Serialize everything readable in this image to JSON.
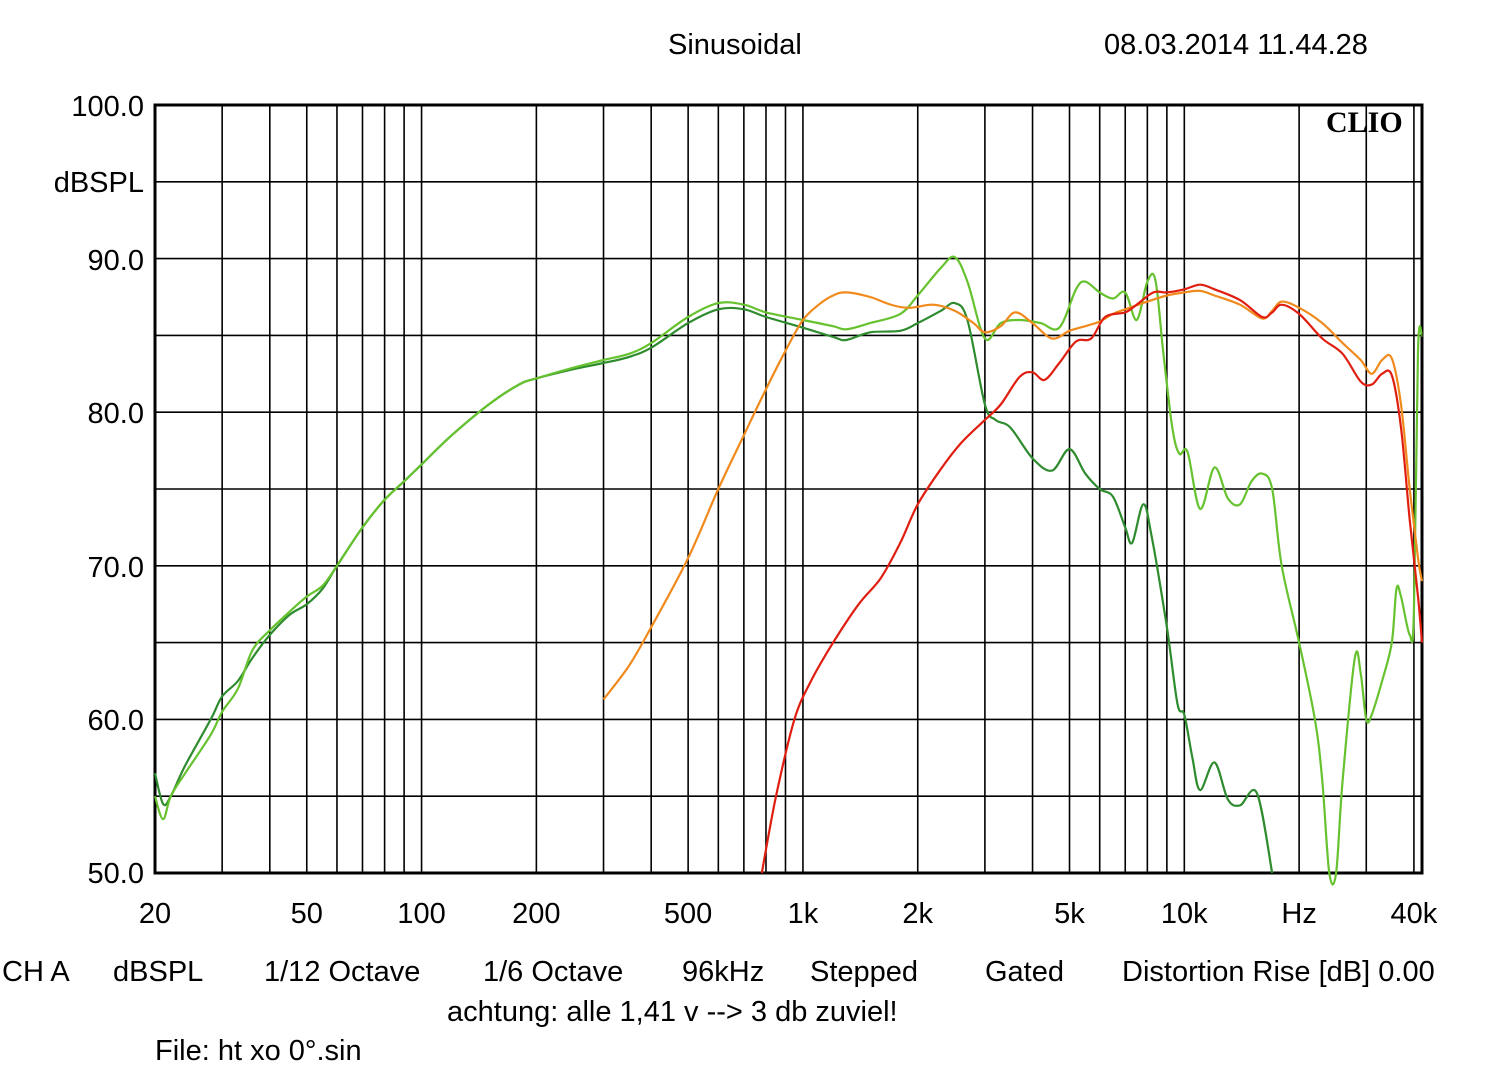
{
  "header": {
    "mode": "Sinusoidal",
    "datetime": "08.03.2014 11.44.28",
    "brand": "CLIO"
  },
  "footer": {
    "channel": "CH A",
    "unit": "dBSPL",
    "smoothing": "1/12 Octave",
    "resolution": "1/6 Octave",
    "sample_rate": "96kHz",
    "sweep": "Stepped",
    "window": "Gated",
    "distortion": "Distortion Rise [dB] 0.00",
    "note": "achtung: alle 1,41 v --> 3 db zuviel!",
    "file": "File: ht xo 0°.sin"
  },
  "colors": {
    "grid": "#000000",
    "dark_green": "#2e8b2e",
    "light_green": "#66c22e",
    "orange": "#f08a1c",
    "red": "#e01e10"
  },
  "chart_data": {
    "type": "line",
    "x_scale": "log",
    "xlim": [
      20,
      42000
    ],
    "ylim": [
      50,
      100
    ],
    "ylabel": "dBSPL",
    "xlabel": "Hz",
    "grid": true,
    "y_ticks": [
      "100.0",
      "90.0",
      "80.0",
      "70.0",
      "60.0",
      "50.0"
    ],
    "x_ticks": [
      {
        "v": 20,
        "label": "20"
      },
      {
        "v": 50,
        "label": "50"
      },
      {
        "v": 100,
        "label": "100"
      },
      {
        "v": 200,
        "label": "200"
      },
      {
        "v": 500,
        "label": "500"
      },
      {
        "v": 1000,
        "label": "1k"
      },
      {
        "v": 2000,
        "label": "2k"
      },
      {
        "v": 5000,
        "label": "5k"
      },
      {
        "v": 10000,
        "label": "10k"
      },
      {
        "v": 20000,
        "label": "Hz"
      },
      {
        "v": 40000,
        "label": "40k"
      }
    ],
    "series": [
      {
        "color": "#2e8b2e",
        "points": [
          [
            20,
            56.5
          ],
          [
            21,
            54.5
          ],
          [
            22,
            55
          ],
          [
            24,
            57
          ],
          [
            28,
            60
          ],
          [
            30,
            61.5
          ],
          [
            33,
            62.5
          ],
          [
            36,
            64
          ],
          [
            40,
            65.5
          ],
          [
            45,
            66.8
          ],
          [
            50,
            67.5
          ],
          [
            55,
            68.5
          ],
          [
            60,
            70
          ],
          [
            70,
            72.5
          ],
          [
            80,
            74.3
          ],
          [
            90,
            75.5
          ],
          [
            100,
            76.6
          ],
          [
            120,
            78.5
          ],
          [
            150,
            80.5
          ],
          [
            180,
            81.8
          ],
          [
            200,
            82.2
          ],
          [
            250,
            82.8
          ],
          [
            300,
            83.2
          ],
          [
            350,
            83.6
          ],
          [
            400,
            84.2
          ],
          [
            500,
            85.8
          ],
          [
            600,
            86.7
          ],
          [
            700,
            86.7
          ],
          [
            800,
            86.2
          ],
          [
            1000,
            85.5
          ],
          [
            1200,
            84.9
          ],
          [
            1300,
            84.7
          ],
          [
            1500,
            85.2
          ],
          [
            1800,
            85.3
          ],
          [
            2000,
            85.8
          ],
          [
            2300,
            86.6
          ],
          [
            2500,
            87.1
          ],
          [
            2700,
            86
          ],
          [
            3000,
            80.5
          ],
          [
            3200,
            79.5
          ],
          [
            3500,
            79
          ],
          [
            4000,
            77
          ],
          [
            4500,
            76.2
          ],
          [
            5000,
            77.6
          ],
          [
            5500,
            76
          ],
          [
            6000,
            75
          ],
          [
            6500,
            74.5
          ],
          [
            7000,
            72.5
          ],
          [
            7300,
            71.5
          ],
          [
            7800,
            74
          ],
          [
            8200,
            72
          ],
          [
            9000,
            66
          ],
          [
            9600,
            61
          ],
          [
            10000,
            60.3
          ],
          [
            10500,
            57.5
          ],
          [
            11000,
            55.4
          ],
          [
            12000,
            57.2
          ],
          [
            13000,
            54.8
          ],
          [
            14000,
            54.4
          ],
          [
            15500,
            55.2
          ],
          [
            17000,
            50
          ]
        ]
      },
      {
        "color": "#66c22e",
        "points": [
          [
            20,
            55
          ],
          [
            21,
            53.5
          ],
          [
            22,
            55
          ],
          [
            24,
            56.5
          ],
          [
            28,
            59
          ],
          [
            30,
            60.5
          ],
          [
            33,
            62
          ],
          [
            36,
            64.5
          ],
          [
            40,
            65.8
          ],
          [
            45,
            67
          ],
          [
            50,
            68
          ],
          [
            55,
            68.7
          ],
          [
            60,
            70
          ],
          [
            70,
            72.5
          ],
          [
            80,
            74.3
          ],
          [
            90,
            75.5
          ],
          [
            100,
            76.6
          ],
          [
            120,
            78.5
          ],
          [
            150,
            80.5
          ],
          [
            180,
            81.8
          ],
          [
            200,
            82.2
          ],
          [
            250,
            82.9
          ],
          [
            300,
            83.4
          ],
          [
            350,
            83.8
          ],
          [
            400,
            84.5
          ],
          [
            500,
            86.2
          ],
          [
            600,
            87.1
          ],
          [
            700,
            87
          ],
          [
            800,
            86.5
          ],
          [
            1000,
            86
          ],
          [
            1200,
            85.6
          ],
          [
            1300,
            85.4
          ],
          [
            1500,
            85.8
          ],
          [
            1800,
            86.4
          ],
          [
            2000,
            87.6
          ],
          [
            2300,
            89.4
          ],
          [
            2500,
            90.1
          ],
          [
            2700,
            88.5
          ],
          [
            3000,
            84.8
          ],
          [
            3300,
            85.8
          ],
          [
            3700,
            86
          ],
          [
            4200,
            85.8
          ],
          [
            4700,
            85.5
          ],
          [
            5200,
            88
          ],
          [
            5500,
            88.5
          ],
          [
            6000,
            87.8
          ],
          [
            6500,
            87.4
          ],
          [
            7000,
            87.8
          ],
          [
            7500,
            86
          ],
          [
            8000,
            88.5
          ],
          [
            8400,
            88.6
          ],
          [
            8800,
            84
          ],
          [
            9300,
            79
          ],
          [
            9700,
            77.3
          ],
          [
            10200,
            77.4
          ],
          [
            11000,
            73.7
          ],
          [
            12000,
            76.4
          ],
          [
            13000,
            74.4
          ],
          [
            14000,
            74
          ],
          [
            15000,
            75.5
          ],
          [
            16000,
            76
          ],
          [
            17000,
            75
          ],
          [
            18000,
            70
          ],
          [
            20000,
            65
          ],
          [
            22000,
            60
          ],
          [
            23000,
            56
          ],
          [
            24000,
            50
          ],
          [
            25000,
            50
          ],
          [
            26000,
            56
          ],
          [
            28000,
            64
          ],
          [
            29000,
            63
          ],
          [
            30000,
            60
          ],
          [
            31000,
            60.3
          ],
          [
            33000,
            62.5
          ],
          [
            35000,
            65
          ],
          [
            36000,
            68.5
          ],
          [
            37000,
            68
          ],
          [
            39000,
            65.5
          ],
          [
            40000,
            67
          ],
          [
            41000,
            84
          ],
          [
            42000,
            85
          ]
        ]
      },
      {
        "color": "#f08a1c",
        "points": [
          [
            300,
            61.3
          ],
          [
            350,
            63.5
          ],
          [
            400,
            66
          ],
          [
            500,
            70.5
          ],
          [
            600,
            75
          ],
          [
            700,
            78.5
          ],
          [
            800,
            81.5
          ],
          [
            900,
            84
          ],
          [
            1000,
            86
          ],
          [
            1100,
            87
          ],
          [
            1200,
            87.6
          ],
          [
            1300,
            87.8
          ],
          [
            1500,
            87.5
          ],
          [
            1700,
            87
          ],
          [
            1900,
            86.8
          ],
          [
            2200,
            87
          ],
          [
            2500,
            86.6
          ],
          [
            2800,
            85.8
          ],
          [
            3000,
            85.2
          ],
          [
            3300,
            85.6
          ],
          [
            3600,
            86.5
          ],
          [
            4000,
            85.8
          ],
          [
            4500,
            84.8
          ],
          [
            5000,
            85.3
          ],
          [
            5500,
            85.6
          ],
          [
            6000,
            85.9
          ],
          [
            6500,
            86.4
          ],
          [
            7000,
            86.7
          ],
          [
            8000,
            87.2
          ],
          [
            9000,
            87.6
          ],
          [
            10000,
            87.8
          ],
          [
            11000,
            87.9
          ],
          [
            12000,
            87.6
          ],
          [
            14000,
            87
          ],
          [
            16000,
            86.1
          ],
          [
            17000,
            86.6
          ],
          [
            18000,
            87.2
          ],
          [
            20000,
            86.8
          ],
          [
            23000,
            85.8
          ],
          [
            26000,
            84.5
          ],
          [
            29000,
            83.4
          ],
          [
            31000,
            82.5
          ],
          [
            33000,
            83.4
          ],
          [
            35000,
            83.5
          ],
          [
            37000,
            80.5
          ],
          [
            39000,
            75
          ],
          [
            41000,
            70.5
          ],
          [
            42000,
            69
          ]
        ]
      },
      {
        "color": "#e01e10",
        "points": [
          [
            780,
            50
          ],
          [
            850,
            55
          ],
          [
            950,
            60
          ],
          [
            1050,
            62.5
          ],
          [
            1200,
            65
          ],
          [
            1400,
            67.5
          ],
          [
            1600,
            69.2
          ],
          [
            1800,
            71.5
          ],
          [
            2000,
            74
          ],
          [
            2300,
            76.3
          ],
          [
            2600,
            78
          ],
          [
            3000,
            79.5
          ],
          [
            3300,
            80.5
          ],
          [
            3700,
            82.3
          ],
          [
            4000,
            82.6
          ],
          [
            4300,
            82.1
          ],
          [
            4700,
            83.2
          ],
          [
            5200,
            84.6
          ],
          [
            5700,
            84.8
          ],
          [
            6200,
            86.2
          ],
          [
            7000,
            86.5
          ],
          [
            7500,
            87
          ],
          [
            8300,
            87.8
          ],
          [
            9000,
            87.8
          ],
          [
            10000,
            88
          ],
          [
            11000,
            88.3
          ],
          [
            12000,
            88
          ],
          [
            14000,
            87.3
          ],
          [
            16000,
            86.2
          ],
          [
            17000,
            86.5
          ],
          [
            18000,
            87
          ],
          [
            20000,
            86.4
          ],
          [
            23000,
            84.8
          ],
          [
            26000,
            83.8
          ],
          [
            29000,
            82
          ],
          [
            31000,
            81.8
          ],
          [
            33000,
            82.5
          ],
          [
            35000,
            82.4
          ],
          [
            37000,
            79
          ],
          [
            39000,
            73
          ],
          [
            41000,
            68
          ],
          [
            42000,
            65
          ]
        ]
      }
    ]
  }
}
